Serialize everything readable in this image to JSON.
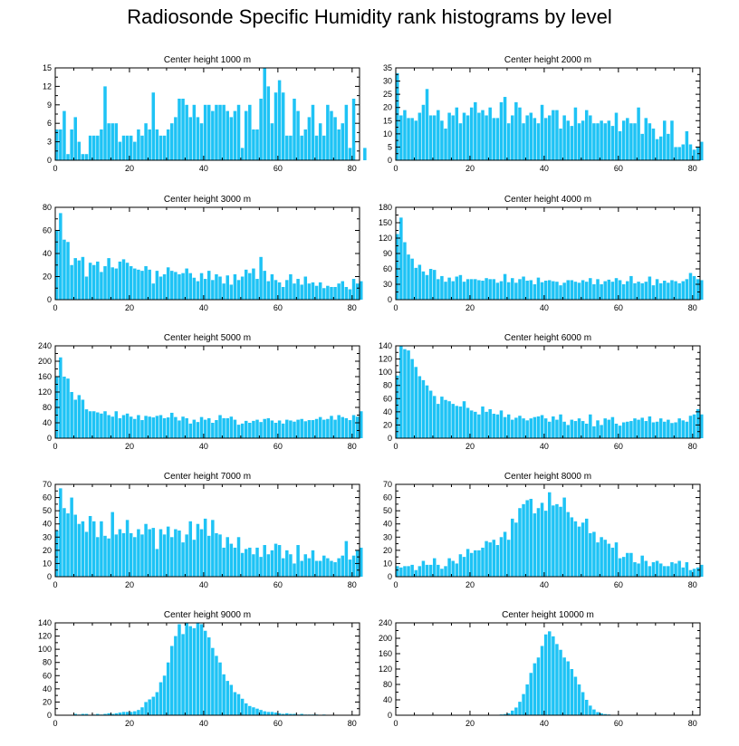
{
  "title": "Radiosonde Specific Humidity rank histograms by level",
  "colors": {
    "bar": "#1EC3F5",
    "axis": "#000000",
    "background": "#FFFFFF"
  },
  "chart_data": [
    {
      "type": "bar",
      "title": "Center height 1000 m",
      "xlim": [
        0,
        82
      ],
      "ylim": [
        0,
        15
      ],
      "xticks": [
        0,
        20,
        40,
        60,
        80
      ],
      "yticks": [
        0,
        3,
        6,
        9,
        12,
        15
      ],
      "values": [
        5,
        5,
        8,
        1,
        5,
        7,
        3,
        1,
        1,
        4,
        4,
        4,
        5,
        12,
        6,
        6,
        6,
        3,
        4,
        4,
        4,
        3,
        5,
        4,
        6,
        5,
        11,
        5,
        4,
        4,
        5,
        6,
        7,
        10,
        10,
        9,
        7,
        9,
        7,
        6,
        9,
        9,
        8,
        9,
        9,
        9,
        8,
        7,
        8,
        9,
        2,
        8,
        9,
        5,
        5,
        10,
        15,
        12,
        6,
        11,
        13,
        11,
        4,
        4,
        10,
        8,
        4,
        5,
        7,
        9,
        4,
        6,
        4,
        9,
        8,
        7,
        5,
        6,
        9,
        2,
        10,
        0,
        0,
        2
      ]
    },
    {
      "type": "bar",
      "title": "Center height 2000 m",
      "xlim": [
        0,
        82
      ],
      "ylim": [
        0,
        35
      ],
      "xticks": [
        0,
        20,
        40,
        60,
        80
      ],
      "yticks": [
        0,
        5,
        10,
        15,
        20,
        25,
        30,
        35
      ],
      "values": [
        33,
        17,
        19,
        16,
        16,
        15,
        18,
        21,
        27,
        17,
        17,
        19,
        15,
        12,
        18,
        17,
        20,
        14,
        18,
        17,
        20,
        22,
        18,
        19,
        17,
        20,
        16,
        16,
        22,
        24,
        14,
        17,
        22,
        20,
        14,
        17,
        18,
        16,
        14,
        21,
        16,
        17,
        19,
        19,
        12,
        17,
        15,
        13,
        20,
        14,
        15,
        19,
        17,
        14,
        14,
        15,
        14,
        15,
        13,
        18,
        11,
        15,
        16,
        14,
        14,
        20,
        10,
        16,
        14,
        12,
        8,
        9,
        15,
        10,
        15,
        5,
        5,
        6,
        11,
        6,
        4,
        5,
        7
      ]
    },
    {
      "type": "bar",
      "title": "Center height 3000 m",
      "xlim": [
        0,
        82
      ],
      "ylim": [
        0,
        80
      ],
      "xticks": [
        0,
        20,
        40,
        60,
        80
      ],
      "yticks": [
        0,
        20,
        40,
        60,
        80
      ],
      "values": [
        60,
        75,
        52,
        50,
        30,
        36,
        34,
        37,
        20,
        32,
        30,
        33,
        24,
        29,
        36,
        28,
        27,
        33,
        35,
        32,
        29,
        27,
        26,
        25,
        29,
        26,
        14,
        25,
        20,
        22,
        28,
        25,
        24,
        22,
        23,
        27,
        23,
        19,
        16,
        23,
        18,
        25,
        17,
        22,
        20,
        14,
        21,
        13,
        22,
        17,
        20,
        26,
        23,
        27,
        18,
        37,
        25,
        16,
        22,
        17,
        15,
        11,
        17,
        22,
        14,
        18,
        13,
        20,
        14,
        15,
        12,
        15,
        10,
        12,
        11,
        11,
        14,
        16,
        11,
        9,
        18,
        14,
        16
      ]
    },
    {
      "type": "bar",
      "title": "Center height 4000 m",
      "xlim": [
        0,
        82
      ],
      "ylim": [
        0,
        180
      ],
      "xticks": [
        0,
        20,
        40,
        60,
        80
      ],
      "yticks": [
        0,
        30,
        60,
        90,
        120,
        150,
        180
      ],
      "values": [
        128,
        160,
        112,
        88,
        80,
        62,
        68,
        55,
        48,
        60,
        58,
        40,
        46,
        35,
        43,
        36,
        45,
        48,
        35,
        40,
        40,
        40,
        38,
        37,
        42,
        40,
        40,
        33,
        36,
        50,
        34,
        42,
        33,
        40,
        45,
        37,
        38,
        30,
        43,
        34,
        37,
        38,
        36,
        35,
        28,
        33,
        38,
        38,
        35,
        33,
        38,
        35,
        42,
        30,
        40,
        30,
        36,
        39,
        35,
        42,
        38,
        30,
        36,
        46,
        32,
        35,
        32,
        35,
        45,
        28,
        40,
        32,
        37,
        33,
        38,
        36,
        32,
        36,
        40,
        52,
        46,
        40,
        38
      ]
    },
    {
      "type": "bar",
      "title": "Center height 5000 m",
      "xlim": [
        0,
        82
      ],
      "ylim": [
        0,
        240
      ],
      "xticks": [
        0,
        20,
        40,
        60,
        80
      ],
      "yticks": [
        0,
        40,
        80,
        120,
        160,
        200,
        240
      ],
      "values": [
        160,
        210,
        160,
        155,
        120,
        100,
        112,
        100,
        75,
        70,
        70,
        67,
        64,
        70,
        60,
        56,
        70,
        52,
        60,
        64,
        56,
        50,
        60,
        47,
        58,
        56,
        54,
        58,
        60,
        52,
        54,
        66,
        55,
        46,
        56,
        52,
        38,
        48,
        42,
        55,
        48,
        52,
        40,
        47,
        60,
        52,
        52,
        56,
        48,
        35,
        38,
        45,
        40,
        45,
        48,
        42,
        50,
        52,
        46,
        40,
        46,
        38,
        48,
        46,
        43,
        48,
        50,
        44,
        47,
        47,
        50,
        55,
        48,
        50,
        58,
        48,
        60,
        55,
        52,
        47,
        60,
        56,
        70
      ]
    },
    {
      "type": "bar",
      "title": "Center height 6000 m",
      "xlim": [
        0,
        82
      ],
      "ylim": [
        0,
        140
      ],
      "xticks": [
        0,
        20,
        40,
        60,
        80
      ],
      "yticks": [
        0,
        20,
        40,
        60,
        80,
        100,
        120,
        140
      ],
      "values": [
        95,
        140,
        135,
        133,
        120,
        108,
        94,
        88,
        80,
        72,
        64,
        52,
        63,
        58,
        56,
        52,
        49,
        48,
        56,
        46,
        42,
        40,
        36,
        48,
        40,
        44,
        37,
        36,
        42,
        32,
        36,
        28,
        31,
        34,
        30,
        27,
        30,
        32,
        33,
        35,
        30,
        25,
        33,
        28,
        36,
        25,
        20,
        28,
        26,
        30,
        26,
        22,
        36,
        18,
        27,
        20,
        30,
        28,
        32,
        22,
        19,
        24,
        25,
        26,
        30,
        28,
        31,
        26,
        33,
        24,
        25,
        30,
        25,
        28,
        23,
        24,
        30,
        27,
        25,
        34,
        36,
        44,
        36
      ]
    },
    {
      "type": "bar",
      "title": "Center height 7000 m",
      "xlim": [
        0,
        82
      ],
      "ylim": [
        0,
        70
      ],
      "xticks": [
        0,
        20,
        40,
        60,
        80
      ],
      "yticks": [
        0,
        10,
        20,
        30,
        40,
        50,
        60,
        70
      ],
      "values": [
        35,
        67,
        52,
        48,
        60,
        47,
        40,
        42,
        34,
        46,
        42,
        30,
        42,
        31,
        29,
        49,
        32,
        36,
        33,
        43,
        33,
        30,
        36,
        32,
        40,
        36,
        37,
        21,
        36,
        32,
        38,
        30,
        36,
        35,
        26,
        32,
        42,
        28,
        40,
        36,
        44,
        31,
        43,
        33,
        32,
        22,
        30,
        25,
        22,
        30,
        18,
        21,
        22,
        17,
        22,
        15,
        24,
        17,
        20,
        25,
        24,
        14,
        20,
        17,
        10,
        24,
        12,
        17,
        14,
        20,
        12,
        12,
        16,
        14,
        12,
        11,
        14,
        16,
        27,
        13,
        16,
        20,
        22
      ]
    },
    {
      "type": "bar",
      "title": "Center height 8000 m",
      "xlim": [
        0,
        82
      ],
      "ylim": [
        0,
        70
      ],
      "xticks": [
        0,
        20,
        40,
        60,
        80
      ],
      "yticks": [
        0,
        10,
        20,
        30,
        40,
        50,
        60,
        70
      ],
      "values": [
        8,
        7,
        8,
        8,
        9,
        5,
        8,
        12,
        9,
        9,
        14,
        9,
        6,
        8,
        14,
        12,
        10,
        17,
        15,
        21,
        18,
        20,
        20,
        22,
        27,
        26,
        28,
        24,
        30,
        34,
        28,
        44,
        41,
        52,
        55,
        58,
        59,
        48,
        52,
        56,
        50,
        64,
        54,
        55,
        53,
        60,
        49,
        45,
        42,
        38,
        41,
        44,
        33,
        34,
        26,
        30,
        28,
        25,
        22,
        26,
        14,
        15,
        18,
        18,
        11,
        10,
        16,
        12,
        8,
        11,
        12,
        10,
        8,
        8,
        11,
        10,
        12,
        7,
        11,
        5,
        6,
        7,
        9
      ]
    },
    {
      "type": "bar",
      "title": "Center height 9000 m",
      "xlim": [
        0,
        82
      ],
      "ylim": [
        0,
        140
      ],
      "xticks": [
        0,
        20,
        40,
        60,
        80
      ],
      "yticks": [
        0,
        20,
        40,
        60,
        80,
        100,
        120,
        140
      ],
      "values": [
        0,
        0,
        0,
        0,
        0,
        2,
        1,
        2,
        2,
        0,
        1,
        2,
        1,
        2,
        3,
        2,
        3,
        4,
        5,
        5,
        5,
        6,
        8,
        12,
        20,
        24,
        28,
        35,
        50,
        60,
        80,
        105,
        120,
        138,
        123,
        140,
        135,
        132,
        140,
        138,
        128,
        118,
        102,
        90,
        80,
        62,
        52,
        46,
        35,
        32,
        25,
        18,
        14,
        12,
        10,
        8,
        6,
        5,
        5,
        4,
        3,
        2,
        3,
        2,
        2,
        1,
        2,
        1,
        1,
        1,
        1,
        0,
        1,
        0,
        0,
        0,
        0,
        0,
        0,
        0,
        0,
        0,
        0
      ]
    },
    {
      "type": "bar",
      "title": "Center height 10000 m",
      "xlim": [
        0,
        82
      ],
      "ylim": [
        0,
        240
      ],
      "xticks": [
        0,
        20,
        40,
        60,
        80
      ],
      "yticks": [
        0,
        40,
        80,
        120,
        160,
        200,
        240
      ],
      "values": [
        0,
        0,
        0,
        0,
        0,
        0,
        0,
        0,
        0,
        0,
        0,
        0,
        0,
        0,
        0,
        0,
        0,
        0,
        0,
        0,
        0,
        0,
        0,
        0,
        0,
        0,
        0,
        1,
        2,
        3,
        5,
        12,
        20,
        35,
        55,
        80,
        110,
        135,
        150,
        180,
        210,
        218,
        205,
        185,
        170,
        150,
        140,
        120,
        100,
        80,
        60,
        40,
        25,
        15,
        8,
        5,
        3,
        2,
        1,
        1,
        0,
        0,
        0,
        0,
        0,
        0,
        0,
        0,
        0,
        0,
        0,
        0,
        0,
        0,
        0,
        0,
        0,
        0,
        0,
        0,
        0,
        0,
        0
      ]
    }
  ]
}
